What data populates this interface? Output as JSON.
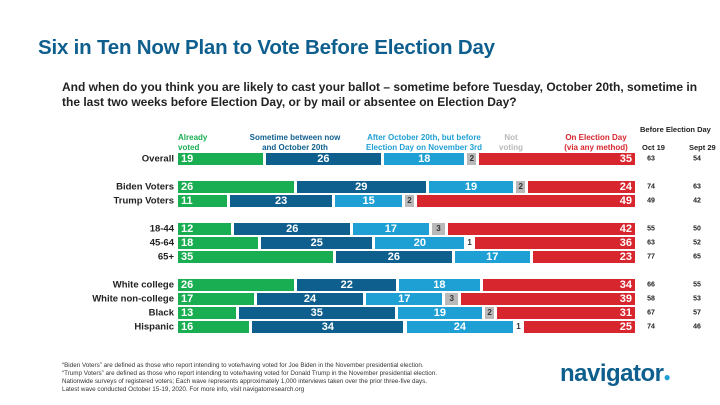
{
  "title": "Six in Ten Now Plan to Vote Before Election Day",
  "question": "And when do you think you are likely to cast your ballot – sometime before Tuesday, October 20th, sometime in the last two weeks before Election Day, or by mail or absentee on Election Day?",
  "right_header": {
    "title": "Before Election Day",
    "col1": "Oct 19",
    "col2": "Sept 29"
  },
  "footnotes": [
    "“Biden Voters” are defined as those who report intending to vote/having voted for Joe Biden in the November presidential election.",
    "“Trump Voters” are defined as those who report intending to vote/having voted for Donald Trump in the November presidential election.",
    "Nationwide surveys of registered voters; Each wave represents approximately 1,000 interviews taken over the prior three-five days.",
    "Latest wave conducted October 15-19, 2020. For more info, visit navigatorresearch.org"
  ],
  "logo": "navigator",
  "chart_data": {
    "type": "bar",
    "stacked": true,
    "title": "Six in Ten Now Plan to Vote Before Election Day",
    "series": [
      {
        "name": "Already voted",
        "color": "#1aae52"
      },
      {
        "name": "Sometime between now and October 20th",
        "color": "#0f5f8e"
      },
      {
        "name": "After October 20th, but before Election Day on November 3rd",
        "color": "#1fa0d4"
      },
      {
        "name": "Not voting",
        "color": "#b9b9b9"
      },
      {
        "name": "On Election Day (via any method)",
        "color": "#d7262e"
      }
    ],
    "legend_lines": [
      [
        "Already",
        "voted"
      ],
      [
        "Sometime between now",
        "and October 20th"
      ],
      [
        "After October 20th, but before",
        "Election Day on November 3rd"
      ],
      [
        "Not",
        "voting"
      ],
      [
        "On Election Day",
        "(via any method)"
      ]
    ],
    "categories": [
      "Overall",
      "Biden Voters",
      "Trump Voters",
      "18-44",
      "45-64",
      "65+",
      "White college",
      "White non-college",
      "Black",
      "Hispanic"
    ],
    "values": [
      [
        19,
        26,
        18,
        2,
        35
      ],
      [
        26,
        29,
        19,
        2,
        24
      ],
      [
        11,
        23,
        15,
        2,
        49
      ],
      [
        12,
        26,
        17,
        3,
        42
      ],
      [
        18,
        25,
        20,
        1,
        36
      ],
      [
        35,
        26,
        17,
        0,
        23
      ],
      [
        26,
        22,
        18,
        0,
        34
      ],
      [
        17,
        24,
        17,
        3,
        39
      ],
      [
        13,
        35,
        19,
        2,
        31
      ],
      [
        16,
        34,
        24,
        1,
        25
      ]
    ],
    "before_election_day": {
      "Oct 19": [
        63,
        74,
        49,
        55,
        63,
        77,
        66,
        58,
        67,
        74
      ],
      "Sept 29": [
        54,
        63,
        42,
        50,
        52,
        65,
        55,
        53,
        57,
        46
      ]
    }
  }
}
